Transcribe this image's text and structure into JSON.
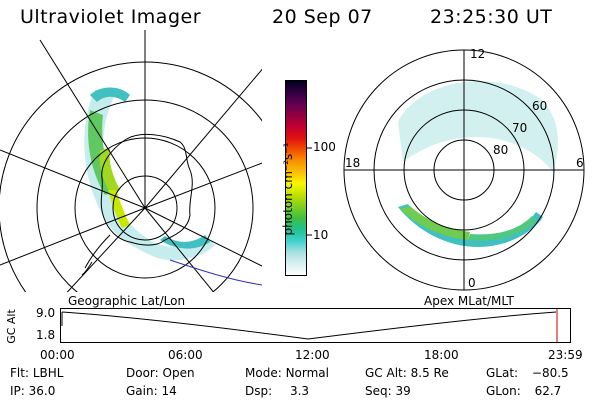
{
  "header": {
    "instrument": "Ultraviolet Imager",
    "date": "20 Sep 07",
    "time": "23:25:30 UT"
  },
  "left_panel": {
    "label": "Geographic Lat/Lon"
  },
  "right_panel": {
    "label": "Apex MLat/MLT",
    "mlt_labels": {
      "top": "12",
      "left": "18",
      "right": "6",
      "bottom": "0"
    },
    "mlat_labels": [
      "60",
      "70",
      "80"
    ]
  },
  "colorbar": {
    "unit_label": "photon cm⁻²s⁻¹",
    "tick_labels": [
      "100",
      "10"
    ],
    "colors": [
      "#ffffff",
      "#d8f0f0",
      "#a8e0e0",
      "#40d0d0",
      "#20c090",
      "#40c040",
      "#80d020",
      "#c0e000",
      "#f8f800",
      "#f8c000",
      "#f89000",
      "#f05000",
      "#e01010",
      "#c00030",
      "#900040",
      "#600050",
      "#300040",
      "#000020"
    ]
  },
  "altitude_plot": {
    "axis_label": "GC Alt",
    "y_ticks": [
      "9.0",
      "1.8"
    ],
    "x_ticks": [
      "00:00",
      "06:00",
      "12:00",
      "18:00",
      "23:59"
    ]
  },
  "status": {
    "flt_label": "Flt:",
    "flt_value": "LBHL",
    "ip_label": "IP:",
    "ip_value": "36.0",
    "door_label": "Door:",
    "door_value": "Open",
    "gain_label": "Gain:",
    "gain_value": "14",
    "mode_label": "Mode:",
    "mode_value": "Normal",
    "dsp_label": "Dsp:",
    "dsp_value": "3.3",
    "gcalt_label": "GC Alt:",
    "gcalt_value": "8.5 Re",
    "seq_label": "Seq:",
    "seq_value": "39",
    "glat_label": "GLat:",
    "glat_value": "−80.5",
    "glon_label": "GLon:",
    "glon_value": "62.7"
  }
}
